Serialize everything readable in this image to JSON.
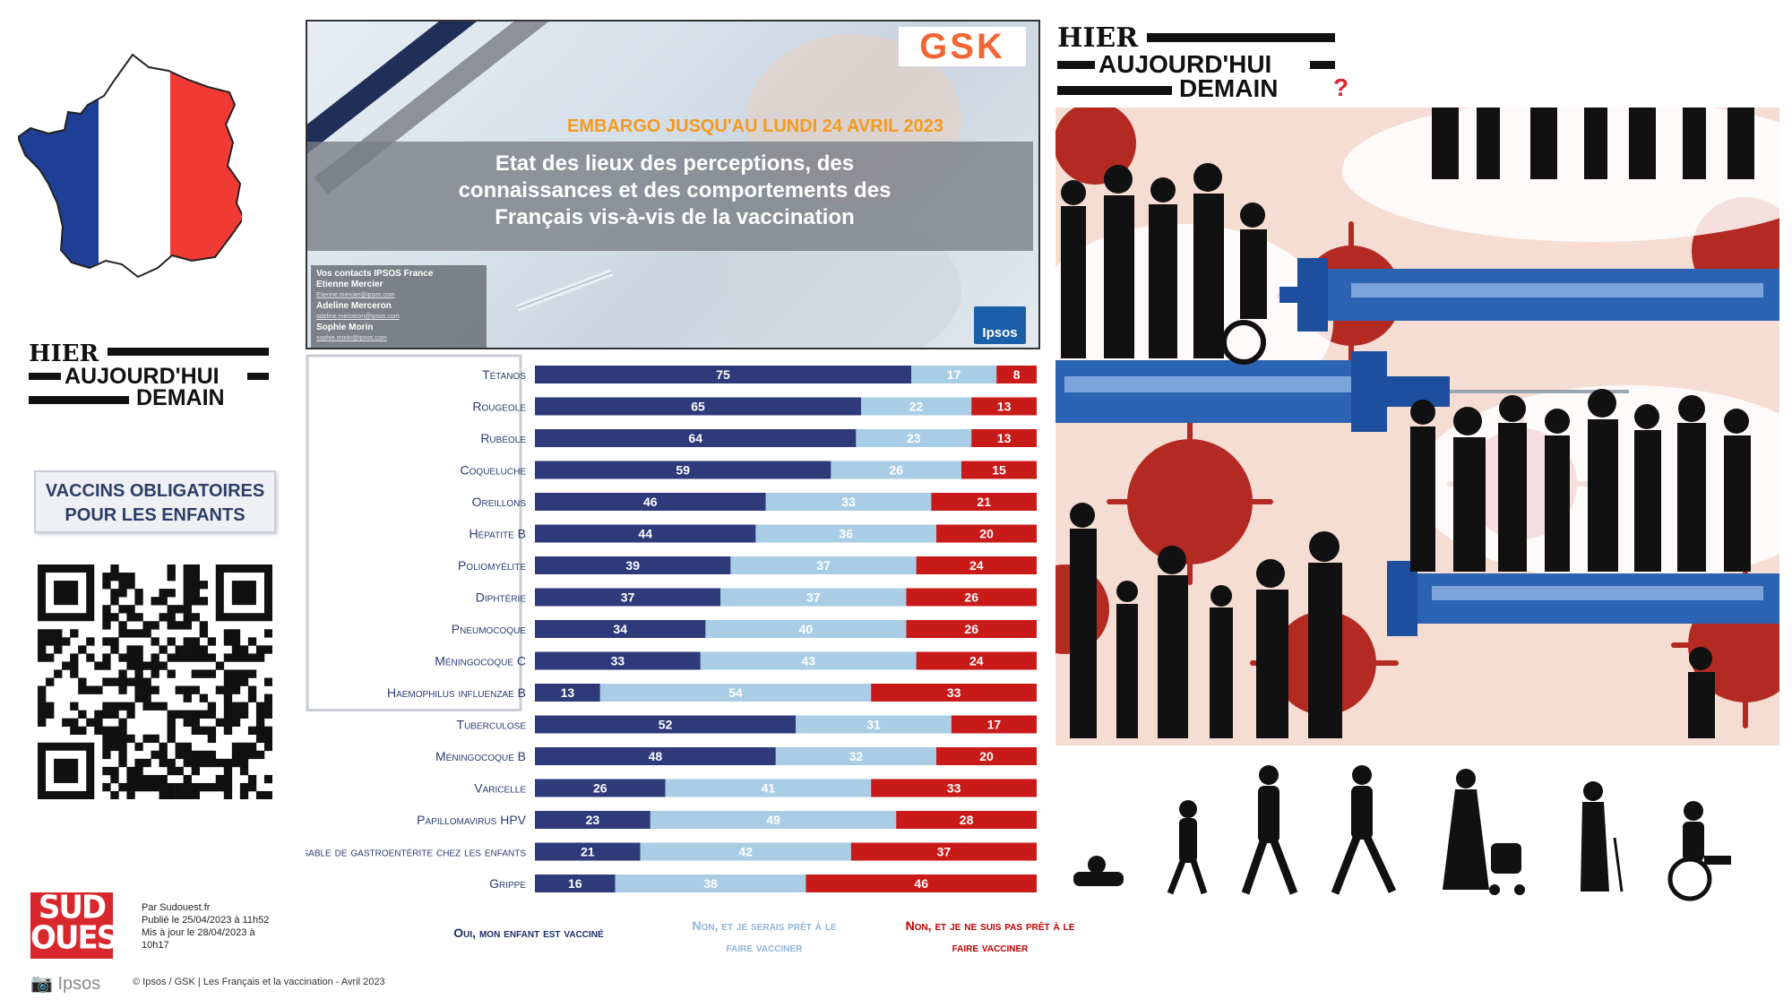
{
  "logos": {
    "hier": "HIER",
    "aujourdhui": "AUJOURD'HUI",
    "demain": "DEMAIN",
    "question_mark": "?"
  },
  "badge": {
    "line1": "VACCINS OBLIGATOIRES",
    "line2": "POUR LES ENFANTS"
  },
  "source": {
    "sudouest_line1": "SUD",
    "sudouest_line2": "OUEST",
    "par": "Par Sudouest.fr",
    "published": "Publié le 25/04/2023 à 11h52",
    "updated_prefix": "Mis à jour le 28/04/2023 à",
    "updated_time": "10h17",
    "photo_credit": "Ipsos",
    "copyright": "© Ipsos / GSK | Les Français et la vaccination - Avril 2023"
  },
  "cover": {
    "gsk": "GSK",
    "embargo": "EMBARGO JUSQU'AU LUNDI 24 AVRIL 2023",
    "title_line1": "Etat des lieux des perceptions, des",
    "title_line2": "connaissances et des comportements des",
    "title_line3": "Français vis-à-vis de la vaccination",
    "contacts_header": "Vos contacts IPSOS France",
    "contact1_name": "Etienne Mercier",
    "contact1_email": "Etienne.mercier@ipsos.com",
    "contact2_name": "Adeline Merceron",
    "contact2_email": "adeline.merceron@ipsos.com",
    "contact3_name": "Sophie Morin",
    "contact3_email": "sophie.morin@ipsos.com",
    "ipsos": "Ipsos"
  },
  "colors": {
    "vaccinated": "#2e3a7a",
    "ready": "#a9cde5",
    "not_ready": "#c91a1a",
    "flag_blue": "#1f3f96",
    "flag_red": "#ef3b34",
    "gsk_orange": "#f36633"
  },
  "chart_data": {
    "type": "bar",
    "orientation": "horizontal",
    "stacked": true,
    "unit": "%",
    "xlim": [
      0,
      100
    ],
    "grid": false,
    "legend_placement": "bottom",
    "mandatory_group_count": 11,
    "categories": [
      "Tétanos",
      "Rougeole",
      "Rubéole",
      "Coqueluche",
      "Oreillons",
      "Hépatite B",
      "Poliomyélite",
      "Diphtérie",
      "Pneumocoque",
      "Méningocoque C",
      "Haemophilus influenzae B",
      "Tuberculose",
      "Méningocoque B",
      "Varicelle",
      "Papillomavirus HPV",
      "Rotavirus responsable de gastroentérite chez les enfants",
      "Grippe"
    ],
    "series": [
      {
        "name": "Oui, mon enfant est vacciné",
        "values": [
          75,
          65,
          64,
          59,
          46,
          44,
          39,
          37,
          34,
          33,
          13,
          52,
          48,
          26,
          23,
          21,
          16
        ]
      },
      {
        "name": "Non, et je serais prêt à le faire vacciner",
        "values": [
          17,
          22,
          23,
          26,
          33,
          36,
          37,
          37,
          40,
          43,
          54,
          31,
          32,
          41,
          49,
          42,
          38
        ]
      },
      {
        "name": "Non, et je ne suis pas prêt à le faire vacciner",
        "values": [
          8,
          13,
          13,
          15,
          21,
          20,
          24,
          26,
          26,
          24,
          33,
          17,
          20,
          33,
          28,
          37,
          46
        ]
      }
    ]
  },
  "legend": {
    "yes": "Oui, mon enfant est vacciné",
    "ready_line1": "Non, et je serais prêt à le",
    "ready_line2": "faire vacciner",
    "no_line1": "Non, et je ne suis pas prêt à le",
    "no_line2": "faire vacciner"
  }
}
